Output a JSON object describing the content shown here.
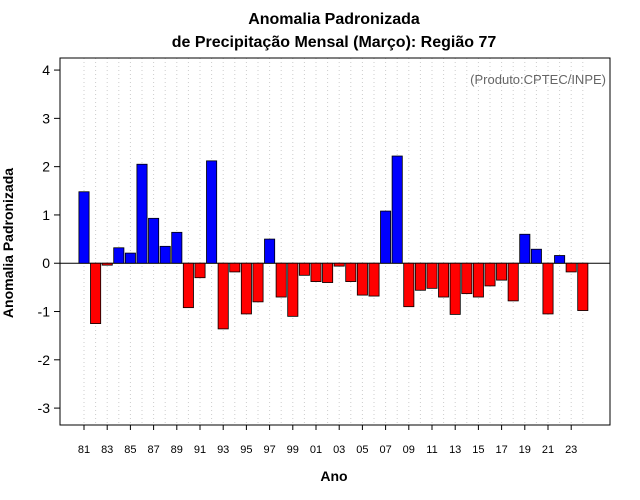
{
  "chart_data": {
    "type": "bar",
    "title_line1": "Anomalia Padronizada",
    "title_line2": "de Precipitação Mensal (Março): Região 77",
    "xlabel": "Ano",
    "ylabel": "Anomalia Padronizada",
    "credit": "(Produto:CPTEC/INPE)",
    "ylim": [
      -3.35,
      4.25
    ],
    "yticks": [
      -3,
      -2,
      -1,
      0,
      1,
      2,
      3,
      4
    ],
    "grid": "vertical dotted",
    "colors": {
      "positive": "#0000ff",
      "negative": "#ff0000",
      "zero_line": "#000000",
      "grid": "#cccccc"
    },
    "categories": [
      "81",
      "82",
      "83",
      "84",
      "85",
      "86",
      "87",
      "88",
      "89",
      "90",
      "91",
      "92",
      "93",
      "94",
      "95",
      "96",
      "97",
      "98",
      "99",
      "00",
      "01",
      "02",
      "03",
      "04",
      "05",
      "06",
      "07",
      "08",
      "09",
      "10",
      "11",
      "12",
      "13",
      "14",
      "15",
      "16",
      "17",
      "18",
      "19",
      "20",
      "21",
      "22",
      "23",
      "24"
    ],
    "x_tick_labels": [
      "81",
      "83",
      "85",
      "87",
      "89",
      "91",
      "93",
      "95",
      "97",
      "99",
      "01",
      "03",
      "05",
      "07",
      "09",
      "11",
      "13",
      "15",
      "17",
      "19",
      "21",
      "23"
    ],
    "values": [
      1.48,
      -1.25,
      -0.04,
      0.32,
      0.21,
      2.05,
      0.93,
      0.35,
      0.64,
      -0.92,
      -0.3,
      2.12,
      -1.36,
      -0.18,
      -1.05,
      -0.8,
      0.5,
      -0.7,
      -1.1,
      -0.25,
      -0.38,
      -0.4,
      -0.06,
      -0.38,
      -0.66,
      -0.68,
      1.08,
      2.22,
      -0.9,
      -0.56,
      -0.52,
      -0.7,
      -1.06,
      -0.63,
      -0.7,
      -0.47,
      -0.35,
      -0.78,
      0.6,
      0.29,
      -1.05,
      0.16,
      -0.18,
      -0.98
    ]
  }
}
